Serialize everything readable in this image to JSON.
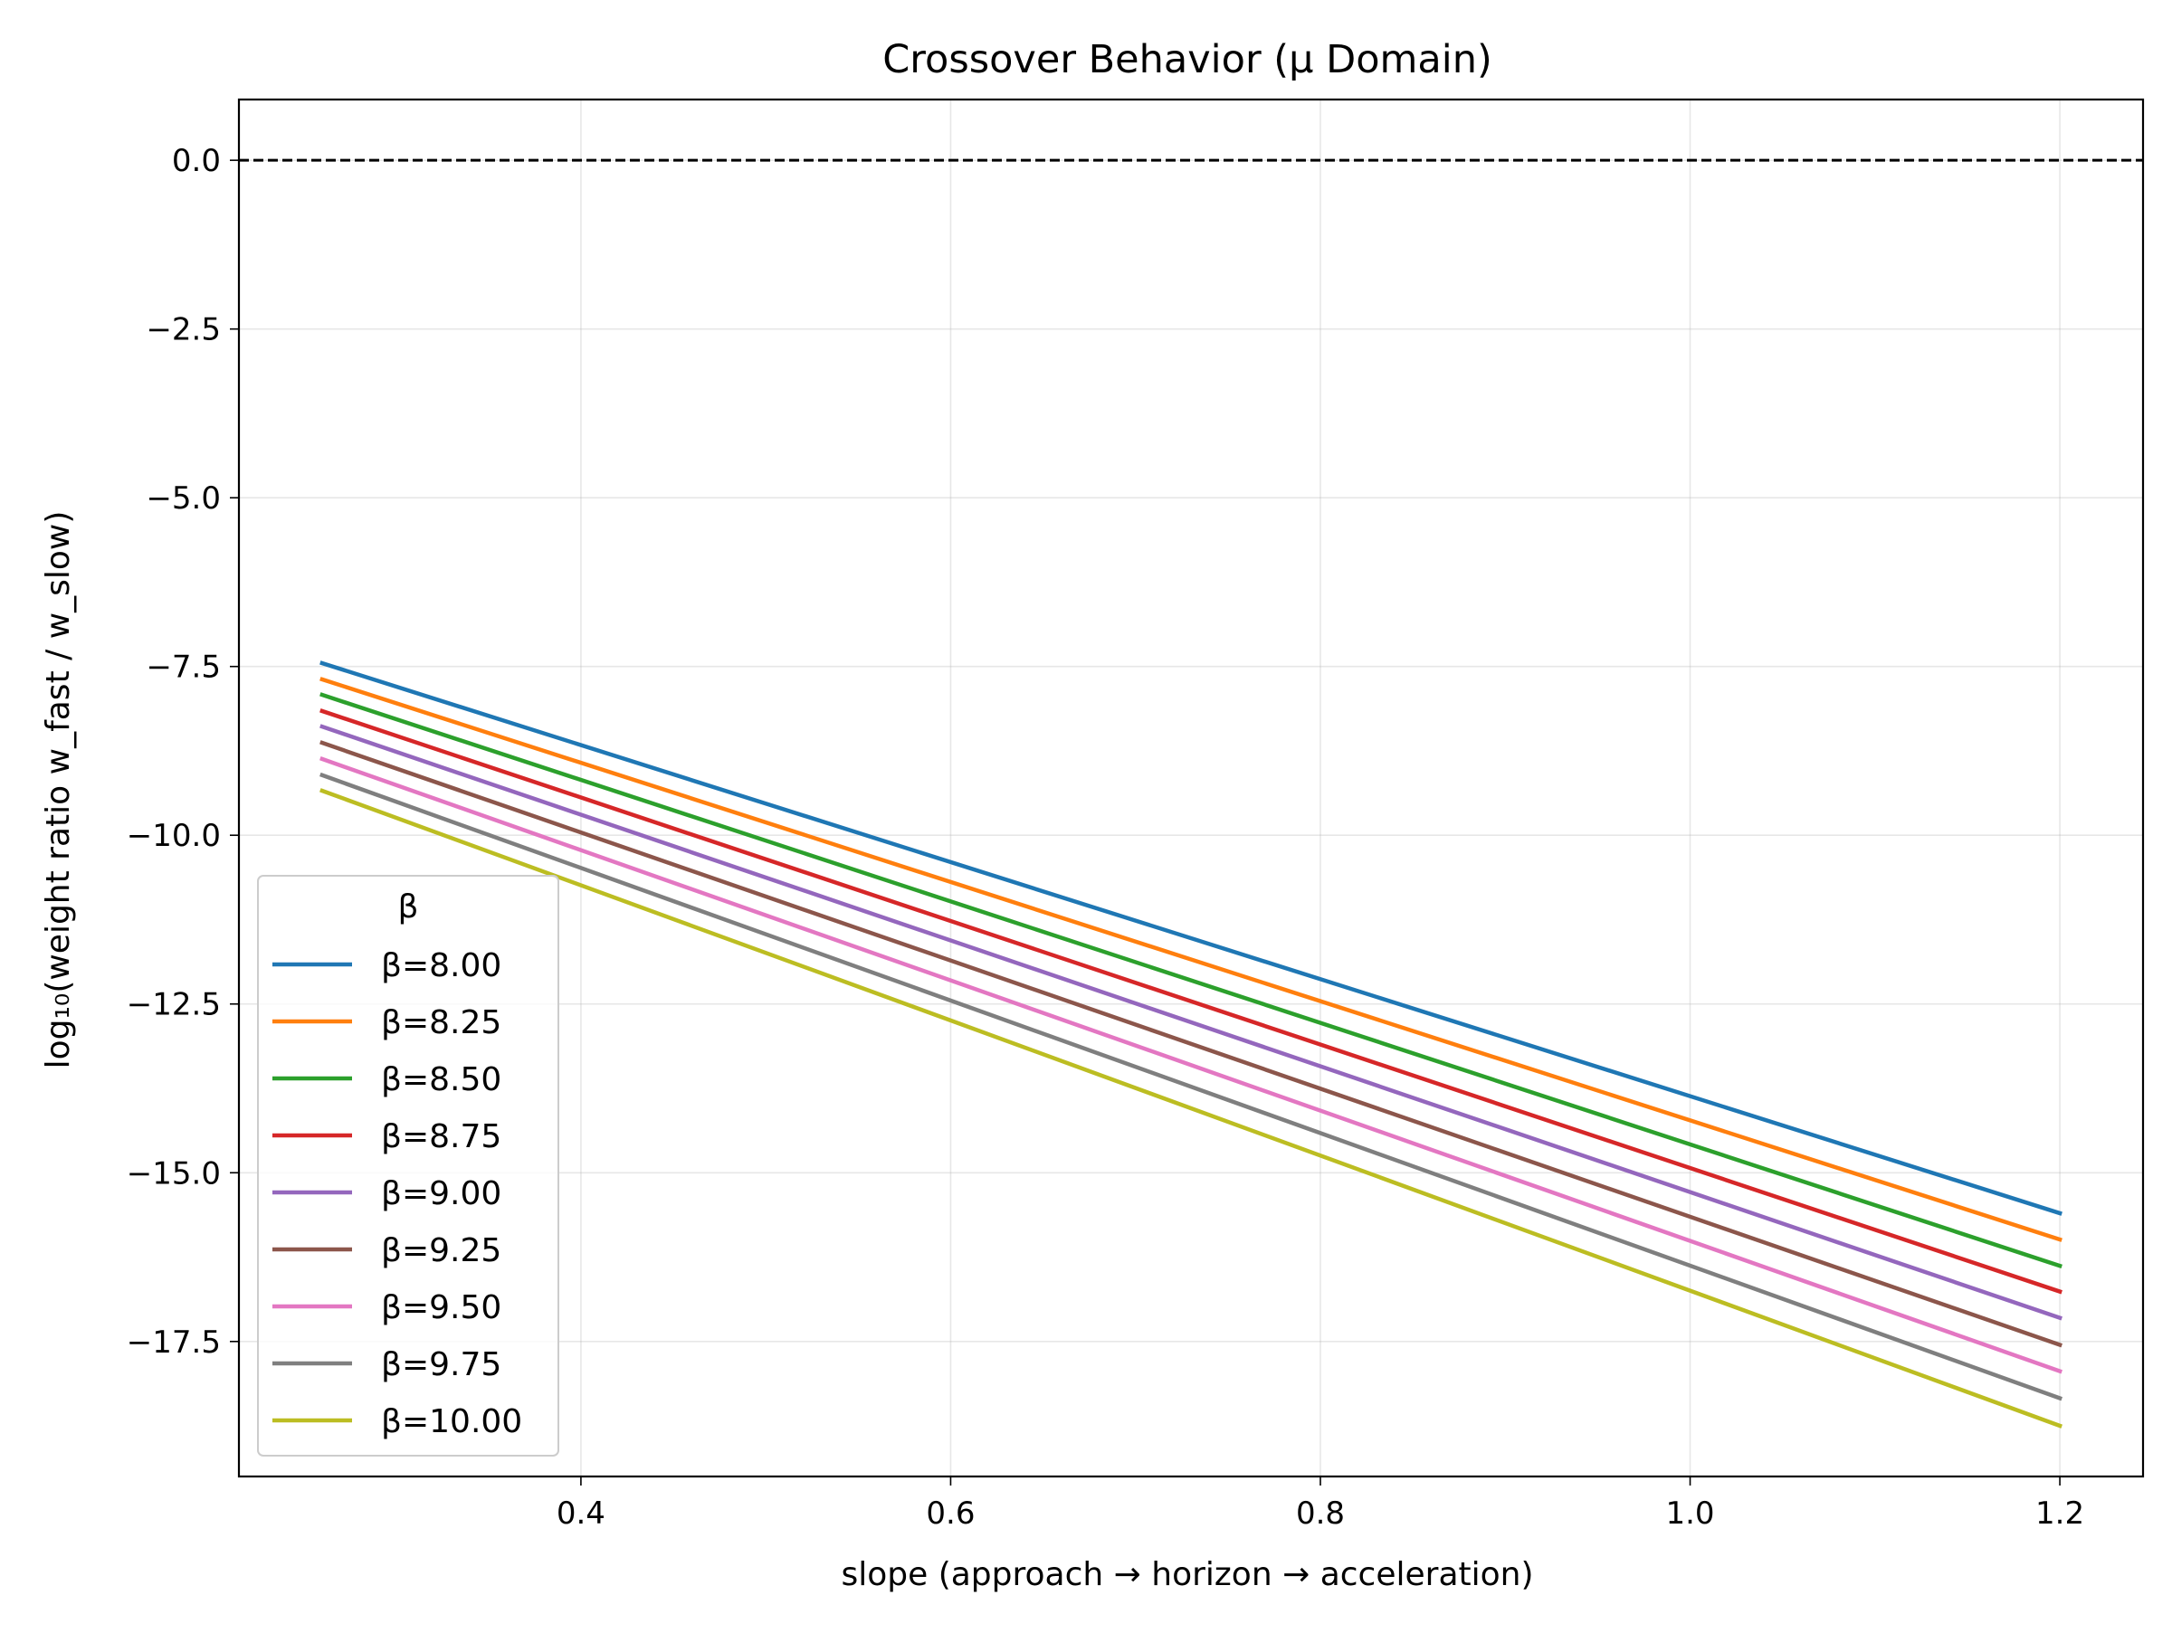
{
  "chart_data": {
    "type": "line",
    "title": "Crossover Behavior (μ Domain)",
    "xlabel": "slope (approach → horizon → acceleration)",
    "ylabel": "log₁₀(weight ratio w_fast / w_slow)",
    "xlim": [
      0.215,
      1.245
    ],
    "ylim": [
      -19.5,
      0.9
    ],
    "xticks": [
      0.4,
      0.6,
      0.8,
      1.0,
      1.2
    ],
    "xtick_labels": [
      "0.4",
      "0.6",
      "0.8",
      "1.0",
      "1.2"
    ],
    "yticks": [
      0.0,
      -2.5,
      -5.0,
      -7.5,
      -10.0,
      -12.5,
      -15.0,
      -17.5
    ],
    "ytick_labels": [
      "0.0",
      "−2.5",
      "−5.0",
      "−7.5",
      "−10.0",
      "−12.5",
      "−15.0",
      "−17.5"
    ],
    "grid": true,
    "reference_line": {
      "y": 0.0,
      "style": "dashed",
      "color": "#000000"
    },
    "legend": {
      "title": "β",
      "position": "lower-left"
    },
    "series": [
      {
        "name": "β=8.00",
        "color": "#1f77b4",
        "x": [
          0.26,
          1.2
        ],
        "y": [
          -7.45,
          -15.6
        ]
      },
      {
        "name": "β=8.25",
        "color": "#ff7f0e",
        "x": [
          0.26,
          1.2
        ],
        "y": [
          -7.69,
          -15.99
        ]
      },
      {
        "name": "β=8.50",
        "color": "#2ca02c",
        "x": [
          0.26,
          1.2
        ],
        "y": [
          -7.92,
          -16.38
        ]
      },
      {
        "name": "β=8.75",
        "color": "#d62728",
        "x": [
          0.26,
          1.2
        ],
        "y": [
          -8.16,
          -16.76
        ]
      },
      {
        "name": "β=9.00",
        "color": "#9467bd",
        "x": [
          0.26,
          1.2
        ],
        "y": [
          -8.39,
          -17.15
        ]
      },
      {
        "name": "β=9.25",
        "color": "#8c564b",
        "x": [
          0.26,
          1.2
        ],
        "y": [
          -8.63,
          -17.55
        ]
      },
      {
        "name": "β=9.50",
        "color": "#e377c2",
        "x": [
          0.26,
          1.2
        ],
        "y": [
          -8.87,
          -17.94
        ]
      },
      {
        "name": "β=9.75",
        "color": "#7f7f7f",
        "x": [
          0.26,
          1.2
        ],
        "y": [
          -9.11,
          -18.34
        ]
      },
      {
        "name": "β=10.00",
        "color": "#bcbd22",
        "x": [
          0.26,
          1.2
        ],
        "y": [
          -9.34,
          -18.75
        ]
      }
    ]
  }
}
